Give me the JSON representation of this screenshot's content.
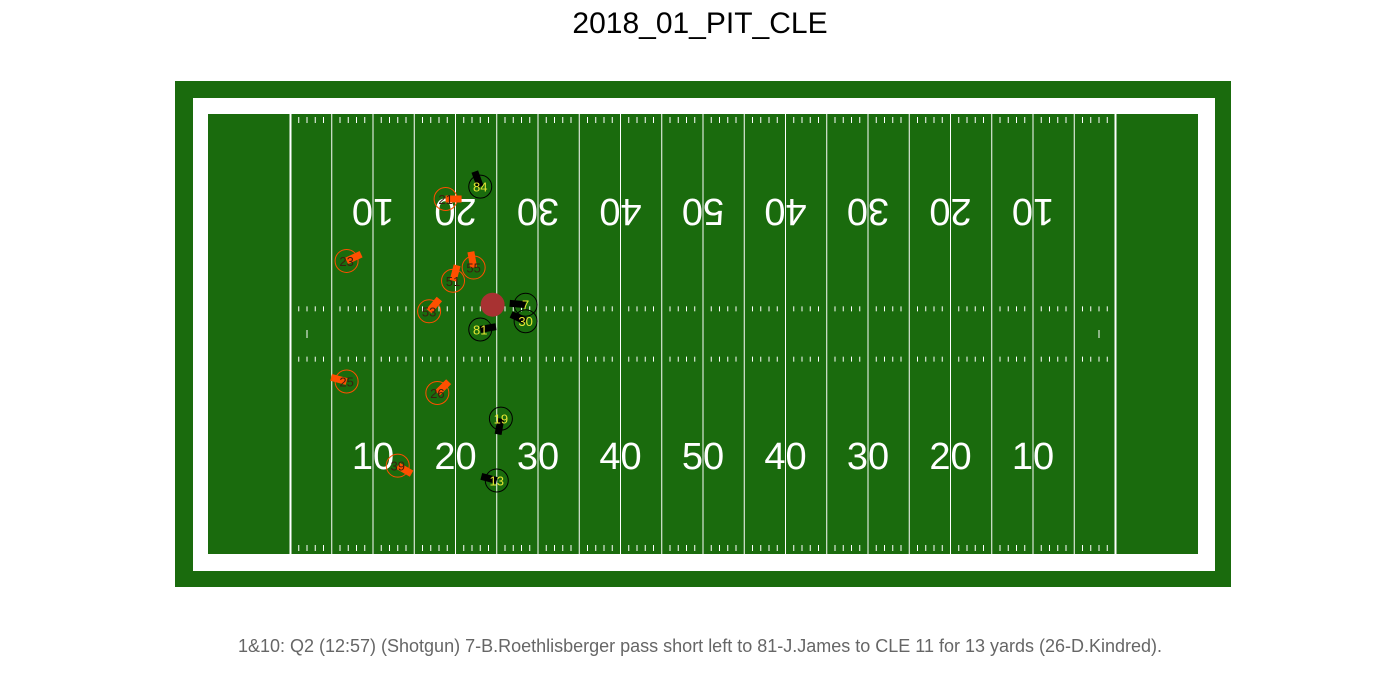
{
  "title": "2018_01_PIT_CLE",
  "caption": "1&10: Q2 (12:57) (Shotgun) 7-B.Roethlisberger pass short left to 81-J.James to CLE 11 for 13 yards (26-D.Kindred).",
  "colors": {
    "turf": "#1a6b0d",
    "border": "#ffffff",
    "offense_fill": "#000000",
    "offense_text": "#e6e633",
    "defense_fill": "#ff4f00",
    "defense_text": "#3a1f0f",
    "football": "#a83232"
  },
  "chart_data": {
    "type": "scatter",
    "field_yard_numbers_bottom": [
      "10",
      "20",
      "30",
      "40",
      "50",
      "40",
      "30",
      "20",
      "10"
    ],
    "field_yard_numbers_top": [
      "10",
      "20",
      "30",
      "40",
      "50",
      "40",
      "30",
      "20",
      "10"
    ],
    "football": {
      "x": 34.5,
      "y": 30.2
    },
    "offense": [
      {
        "number": "84",
        "x": 33,
        "y": 44.5,
        "dir": 200
      },
      {
        "number": "7",
        "x": 38.5,
        "y": 30.2,
        "dir": 265
      },
      {
        "number": "30",
        "x": 38.5,
        "y": 28.2,
        "dir": 245
      },
      {
        "number": "81",
        "x": 33,
        "y": 27.2,
        "dir": 100
      },
      {
        "number": "19",
        "x": 35.5,
        "y": 16.4,
        "dir": 350
      },
      {
        "number": "13",
        "x": 35,
        "y": 8.9,
        "dir": 255
      }
    ],
    "defense": [
      {
        "number": "21",
        "x": 28.8,
        "y": 43.0,
        "dir": 90
      },
      {
        "number": "23",
        "x": 16.8,
        "y": 35.5,
        "dir": 115
      },
      {
        "number": "55",
        "x": 32.2,
        "y": 34.7,
        "dir": 190
      },
      {
        "number": "51",
        "x": 29.7,
        "y": 33.1,
        "dir": 165
      },
      {
        "number": "53",
        "x": 26.8,
        "y": 29.4,
        "dir": 140
      },
      {
        "number": "25",
        "x": 16.8,
        "y": 20.9,
        "dir": 255
      },
      {
        "number": "26",
        "x": 27.8,
        "y": 19.5,
        "dir": 135
      },
      {
        "number": "39",
        "x": 23,
        "y": 10.7,
        "dir": 60
      }
    ]
  }
}
